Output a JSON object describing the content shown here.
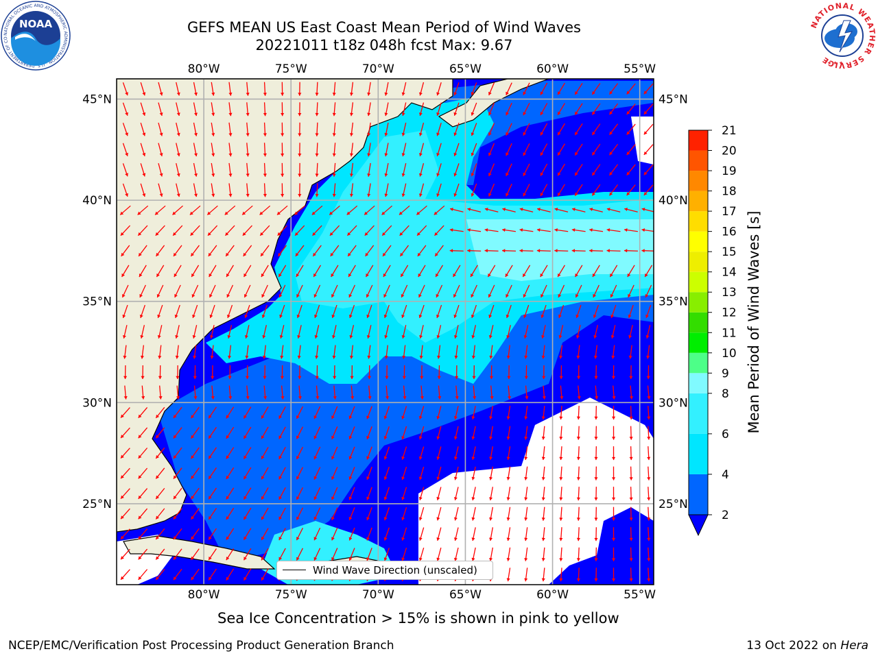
{
  "header": {
    "title_line1": "GEFS MEAN US East Coast Mean Period of Wind Waves",
    "title_line2": "20221011 t18z 048h fcst   Max: 9.67"
  },
  "logos": {
    "noaa_text": "NOAA",
    "noaa_ring_text": "NATIONAL OCEANIC AND ATMOSPHERIC ADMINISTRATION · U.S. DEPARTMENT OF COMMERCE",
    "nws_ring_text": "NATIONAL WEATHER SERVICE"
  },
  "map": {
    "projection": "PlateCarree",
    "lon_range": [
      -85,
      -54.2
    ],
    "lat_range": [
      21,
      46
    ],
    "lon_ticks": [
      "80°W",
      "75°W",
      "70°W",
      "65°W",
      "60°W",
      "55°W"
    ],
    "lon_tick_values": [
      -80,
      -75,
      -70,
      -65,
      -60,
      -55
    ],
    "lat_ticks": [
      "25°N",
      "30°N",
      "35°N",
      "40°N",
      "45°N"
    ],
    "lat_tick_values": [
      25,
      30,
      35,
      40,
      45
    ],
    "gridlines": true,
    "land_color": "#efeedb",
    "ocean_no_data_color": "#ffffff",
    "grid_color": "#b0b0b0",
    "arrow_color": "#ff0000",
    "legend_label": "Wind Wave Direction (unscaled)",
    "legend_placement": "bottom-center"
  },
  "colorbar": {
    "label": "Mean Period of Wind Waves [s]",
    "min": 2,
    "max": 21,
    "ticks": [
      "2",
      "4",
      "6",
      "8",
      "9",
      "10",
      "11",
      "12",
      "13",
      "14",
      "15",
      "16",
      "17",
      "18",
      "19",
      "20",
      "21"
    ],
    "tick_values": [
      2,
      4,
      6,
      8,
      9,
      10,
      11,
      12,
      13,
      14,
      15,
      16,
      17,
      18,
      19,
      20,
      21
    ],
    "bin_colors": [
      "#0066ff",
      "#00e6ff",
      "#33f0ff",
      "#80faff",
      "#4dff88",
      "#00ee00",
      "#33dd00",
      "#88ee00",
      "#ccff00",
      "#eeee00",
      "#ffff00",
      "#ffdd00",
      "#ffb000",
      "#ff8800",
      "#ff5500",
      "#ff2200",
      "#ff0000"
    ],
    "extend_min_color": "#0000ff"
  },
  "notes": {
    "sea_ice": "Sea Ice Concentration > 15% is shown in pink to yellow"
  },
  "footer": {
    "left": "NCEP/EMC/Verification Post Processing Product Generation Branch",
    "right_prefix": "13 Oct 2022 on ",
    "right_machine": "Hera"
  }
}
